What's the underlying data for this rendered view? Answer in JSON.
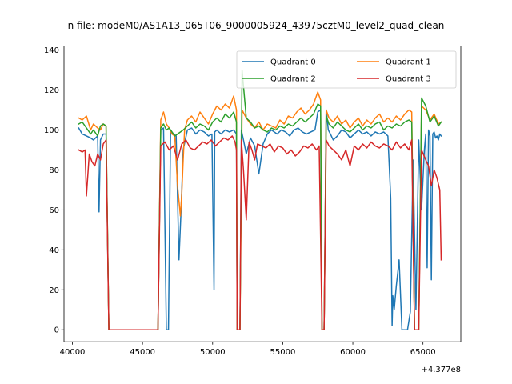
{
  "chart_data": {
    "type": "line",
    "title": "n file: modeM0/AS1A13_065T06_9000005924_43975cztM0_level2_quad_clean",
    "xlabel": "",
    "ylabel": "",
    "x_offset_label": "+4.377e8",
    "xlim": [
      39400,
      67700
    ],
    "ylim": [
      -6,
      142
    ],
    "x_ticks": [
      40000,
      45000,
      50000,
      55000,
      60000,
      65000
    ],
    "y_ticks": [
      0,
      20,
      40,
      60,
      80,
      100,
      120,
      140
    ],
    "x_tick_labels": [
      "40000",
      "45000",
      "50000",
      "55000",
      "60000",
      "65000"
    ],
    "y_tick_labels": [
      "0",
      "20",
      "40",
      "60",
      "80",
      "100",
      "120",
      "140"
    ],
    "legend": {
      "placement": "top-right",
      "columns": 2
    },
    "grid": false,
    "series": [
      {
        "name": "Quadrant 0",
        "color": "#1f77b4",
        "x": [
          40450,
          40700,
          41000,
          41300,
          41500,
          41800,
          41900,
          42000,
          42200,
          42400,
          42600,
          42700,
          46100,
          46300,
          46500,
          46700,
          46850,
          47000,
          47200,
          47400,
          47600,
          47750,
          47900,
          48200,
          48500,
          48800,
          49100,
          49400,
          49700,
          49950,
          50100,
          50150,
          50300,
          50600,
          50900,
          51200,
          51500,
          51700,
          51750,
          51850,
          51950,
          52050,
          52200,
          52400,
          52700,
          53000,
          53300,
          53600,
          53900,
          54200,
          54400,
          54600,
          54900,
          55200,
          55500,
          55800,
          56100,
          56400,
          56700,
          57000,
          57300,
          57500,
          57700,
          57800,
          57850,
          57950,
          58100,
          58250,
          58400,
          58600,
          58900,
          59200,
          59500,
          59800,
          60100,
          60400,
          60700,
          61000,
          61300,
          61600,
          61900,
          62200,
          62500,
          62700,
          62800,
          62850,
          62950,
          63100,
          63300,
          63500,
          63700,
          63900,
          64100,
          64300,
          64500,
          64700,
          64900,
          65000,
          65100,
          65200,
          65300,
          65400,
          65500,
          65600,
          65700,
          65800,
          65900,
          66000,
          66100,
          66200,
          66300
        ],
        "y": [
          101,
          98,
          97,
          96,
          95,
          97,
          59,
          95,
          98,
          98,
          0,
          0,
          0,
          100,
          101,
          0,
          0,
          100,
          98,
          97,
          35,
          60,
          90,
          100,
          101,
          98,
          100,
          99,
          97,
          98,
          20,
          99,
          100,
          98,
          100,
          99,
          100,
          98,
          0,
          0,
          0,
          100,
          95,
          88,
          96,
          92,
          78,
          93,
          98,
          100,
          99,
          98,
          100,
          99,
          97,
          100,
          101,
          99,
          98,
          99,
          100,
          109,
          110,
          0,
          0,
          0,
          110,
          100,
          98,
          95,
          97,
          100,
          99,
          96,
          98,
          100,
          98,
          99,
          97,
          99,
          98,
          99,
          97,
          66,
          2,
          17,
          10,
          22,
          35,
          0,
          0,
          0,
          9,
          85,
          10,
          95,
          60,
          75,
          90,
          98,
          31,
          100,
          97,
          25,
          98,
          99,
          96,
          97,
          95,
          98,
          97
        ]
      },
      {
        "name": "Quadrant 1",
        "color": "#ff7f0e",
        "x": [
          40450,
          40700,
          41000,
          41300,
          41500,
          41800,
          42000,
          42200,
          42400,
          42600,
          42700,
          46100,
          46300,
          46500,
          46700,
          46900,
          47100,
          47300,
          47500,
          47700,
          47800,
          47900,
          48000,
          48200,
          48500,
          48800,
          49100,
          49400,
          49700,
          50000,
          50300,
          50600,
          50900,
          51200,
          51500,
          51700,
          51750,
          51850,
          51950,
          52100,
          52400,
          52700,
          53000,
          53300,
          53600,
          53900,
          54200,
          54500,
          54800,
          55100,
          55400,
          55700,
          56000,
          56300,
          56600,
          56900,
          57200,
          57500,
          57700,
          57800,
          57850,
          57950,
          58100,
          58300,
          58600,
          58900,
          59200,
          59500,
          59800,
          60100,
          60400,
          60700,
          61000,
          61300,
          61600,
          61900,
          62200,
          62500,
          62800,
          63100,
          63400,
          63700,
          64000,
          64200,
          64400,
          64600,
          64700,
          64900,
          65200,
          65500,
          65800,
          66100,
          66300
        ],
        "y": [
          106,
          105,
          107,
          100,
          103,
          101,
          100,
          103,
          102,
          0,
          0,
          0,
          105,
          109,
          103,
          101,
          98,
          97,
          72,
          57,
          68,
          85,
          100,
          105,
          107,
          104,
          109,
          106,
          103,
          108,
          112,
          110,
          113,
          111,
          117,
          110,
          0,
          0,
          0,
          110,
          106,
          103,
          101,
          104,
          100,
          103,
          102,
          101,
          105,
          103,
          107,
          106,
          109,
          111,
          108,
          110,
          113,
          119,
          115,
          0,
          0,
          0,
          110,
          106,
          104,
          107,
          103,
          105,
          101,
          104,
          106,
          102,
          105,
          103,
          106,
          108,
          104,
          106,
          104,
          107,
          105,
          108,
          110,
          109,
          0,
          0,
          0,
          112,
          110,
          105,
          108,
          103,
          104
        ]
      },
      {
        "name": "Quadrant 2",
        "color": "#2ca02c",
        "x": [
          40450,
          40700,
          41000,
          41300,
          41500,
          41800,
          42000,
          42200,
          42400,
          42600,
          42700,
          46100,
          46300,
          46500,
          46700,
          46900,
          47100,
          47300,
          47500,
          47700,
          47900,
          48200,
          48500,
          48800,
          49100,
          49400,
          49700,
          50000,
          50300,
          50600,
          50900,
          51200,
          51500,
          51700,
          51750,
          51850,
          51950,
          52100,
          52400,
          52700,
          53000,
          53300,
          53600,
          53900,
          54200,
          54500,
          54800,
          55100,
          55400,
          55700,
          56000,
          56300,
          56600,
          56900,
          57200,
          57500,
          57700,
          57800,
          57850,
          57950,
          58100,
          58300,
          58600,
          58900,
          59200,
          59500,
          59800,
          60100,
          60400,
          60700,
          61000,
          61300,
          61600,
          61900,
          62200,
          62500,
          62800,
          63100,
          63400,
          63700,
          64000,
          64200,
          64400,
          64600,
          64700,
          64900,
          65200,
          65500,
          65800,
          66100,
          66300
        ],
        "y": [
          103,
          104,
          101,
          98,
          100,
          97,
          102,
          103,
          102,
          0,
          0,
          0,
          101,
          103,
          100,
          101,
          99,
          97,
          98,
          99,
          100,
          102,
          104,
          101,
          103,
          102,
          100,
          104,
          106,
          104,
          108,
          106,
          109,
          104,
          0,
          0,
          0,
          130,
          106,
          104,
          101,
          102,
          100,
          99,
          101,
          100,
          102,
          101,
          103,
          102,
          104,
          106,
          104,
          106,
          108,
          113,
          112,
          0,
          0,
          0,
          107,
          103,
          101,
          104,
          102,
          100,
          99,
          101,
          103,
          100,
          102,
          101,
          103,
          104,
          100,
          102,
          101,
          103,
          102,
          104,
          105,
          104,
          0,
          0,
          0,
          116,
          112,
          104,
          107,
          102,
          104
        ]
      },
      {
        "name": "Quadrant 3",
        "color": "#d62728",
        "x": [
          40450,
          40700,
          40900,
          41000,
          41200,
          41400,
          41600,
          41800,
          42000,
          42200,
          42400,
          42600,
          42700,
          46100,
          46300,
          46600,
          46900,
          47200,
          47500,
          47800,
          48100,
          48400,
          48700,
          49000,
          49300,
          49600,
          49900,
          50200,
          50500,
          50800,
          51100,
          51400,
          51600,
          51700,
          51750,
          51850,
          51950,
          52050,
          52200,
          52400,
          52600,
          52800,
          53000,
          53200,
          53500,
          53800,
          54100,
          54400,
          54700,
          55000,
          55300,
          55600,
          55900,
          56200,
          56500,
          56800,
          57100,
          57400,
          57600,
          57800,
          57850,
          57950,
          58100,
          58300,
          58600,
          58900,
          59200,
          59500,
          59800,
          60100,
          60400,
          60700,
          61000,
          61300,
          61600,
          61900,
          62200,
          62500,
          62800,
          63100,
          63400,
          63700,
          64000,
          64200,
          64400,
          64600,
          64700,
          64900,
          65200,
          65400,
          65600,
          65800,
          66000,
          66200,
          66300
        ],
        "y": [
          90,
          89,
          90,
          67,
          88,
          84,
          82,
          88,
          85,
          93,
          95,
          0,
          0,
          0,
          92,
          94,
          90,
          92,
          85,
          93,
          95,
          91,
          90,
          92,
          94,
          93,
          95,
          92,
          94,
          96,
          95,
          97,
          94,
          90,
          0,
          0,
          0,
          95,
          80,
          55,
          94,
          90,
          85,
          93,
          92,
          91,
          93,
          89,
          92,
          91,
          88,
          90,
          87,
          89,
          92,
          91,
          93,
          90,
          92,
          0,
          0,
          0,
          95,
          92,
          90,
          88,
          85,
          90,
          82,
          92,
          90,
          93,
          91,
          94,
          92,
          91,
          93,
          92,
          90,
          94,
          91,
          93,
          90,
          95,
          0,
          0,
          0,
          90,
          85,
          82,
          72,
          80,
          76,
          70,
          35
        ]
      }
    ]
  }
}
